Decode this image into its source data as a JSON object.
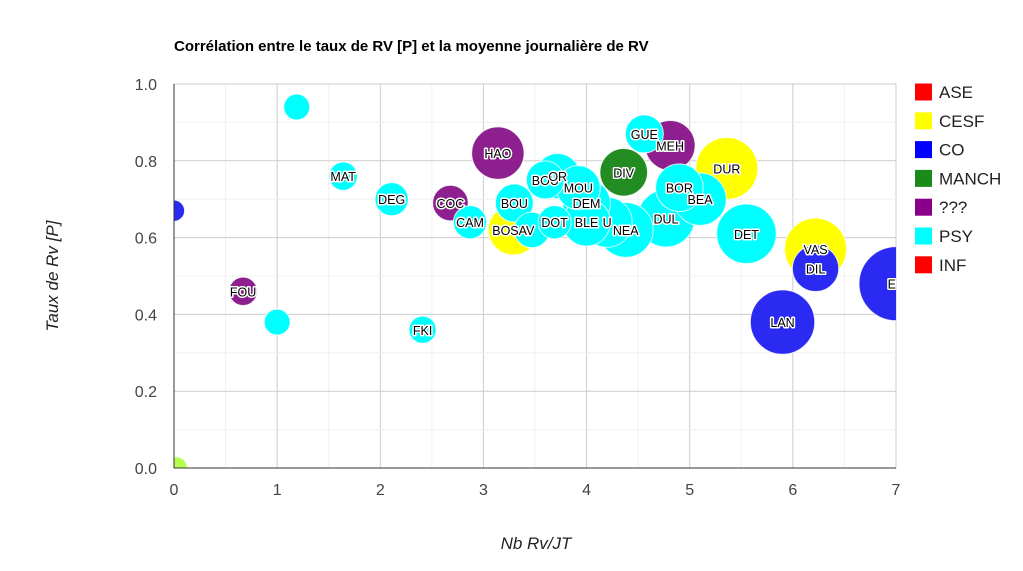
{
  "chart_data": {
    "type": "bubble",
    "title": "Corrélation entre le taux de RV [P] et la moyenne journalière de RV",
    "xlabel": "Nb Rv/JT",
    "ylabel": "Taux de Rv [P]",
    "xlim": [
      0,
      7
    ],
    "ylim": [
      0,
      1
    ],
    "x_ticks": [
      "0",
      "1",
      "2",
      "3",
      "4",
      "5",
      "6",
      "7"
    ],
    "y_ticks": [
      "0.0",
      "0.2",
      "0.4",
      "0.6",
      "0.8",
      "1.0"
    ],
    "grid": true,
    "legend_position": "right",
    "legend": [
      {
        "name": "ASE",
        "color": "#ff0000"
      },
      {
        "name": "CESF",
        "color": "#ffff00"
      },
      {
        "name": "CO",
        "color": "#0000ff"
      },
      {
        "name": "MANCH",
        "color": "#1a8a1a"
      },
      {
        "name": "???",
        "color": "#8b008b"
      },
      {
        "name": "PSY",
        "color": "#00ffff"
      },
      {
        "name": "INF",
        "color": "#ff0000"
      }
    ],
    "points": [
      {
        "label": "",
        "group": "PSY",
        "x": 1.19,
        "y": 0.94,
        "size": 1
      },
      {
        "label": "",
        "group": "CO",
        "x": 0.0,
        "y": 0.67,
        "size": 0.6
      },
      {
        "label": "",
        "group": "other",
        "x": 0.02,
        "y": 0.0,
        "size": 0.7
      },
      {
        "label": "",
        "group": "PSY",
        "x": 1.0,
        "y": 0.38,
        "size": 1
      },
      {
        "label": "MAT",
        "group": "PSY",
        "x": 1.64,
        "y": 0.76,
        "size": 1.2
      },
      {
        "label": "FOU",
        "group": "???",
        "x": 0.67,
        "y": 0.46,
        "size": 1.2
      },
      {
        "label": "DEG",
        "group": "PSY",
        "x": 2.11,
        "y": 0.7,
        "size": 1.6
      },
      {
        "label": "FKI",
        "group": "PSY",
        "x": 2.41,
        "y": 0.36,
        "size": 1.1
      },
      {
        "label": "COC",
        "group": "???",
        "x": 2.68,
        "y": 0.69,
        "size": 1.8
      },
      {
        "label": "CAM",
        "group": "PSY",
        "x": 2.87,
        "y": 0.64,
        "size": 1.6
      },
      {
        "label": "HAO",
        "group": "???",
        "x": 3.14,
        "y": 0.82,
        "size": 3.2
      },
      {
        "label": "BOU",
        "group": "PSY",
        "x": 3.3,
        "y": 0.69,
        "size": 2.0
      },
      {
        "label": "BOSAV",
        "group": "CESF",
        "x": 3.29,
        "y": 0.62,
        "size": 3.0
      },
      {
        "label": "",
        "group": "PSY",
        "x": 3.47,
        "y": 0.62,
        "size": 1.8
      },
      {
        "label": "BOU",
        "group": "PSY",
        "x": 3.6,
        "y": 0.75,
        "size": 2.0
      },
      {
        "label": "OR",
        "group": "PSY",
        "x": 3.72,
        "y": 0.76,
        "size": 2.6
      },
      {
        "label": "MOU",
        "group": "PSY",
        "x": 3.92,
        "y": 0.73,
        "size": 2.5
      },
      {
        "label": "DEM",
        "group": "PSY",
        "x": 4.0,
        "y": 0.69,
        "size": 2.8
      },
      {
        "label": "DOT",
        "group": "PSY",
        "x": 3.69,
        "y": 0.64,
        "size": 1.6
      },
      {
        "label": "BLE",
        "group": "PSY",
        "x": 4.0,
        "y": 0.64,
        "size": 2.8
      },
      {
        "label": "U",
        "group": "PSY",
        "x": 4.2,
        "y": 0.64,
        "size": 3.0
      },
      {
        "label": "NEA",
        "group": "PSY",
        "x": 4.38,
        "y": 0.62,
        "size": 3.4
      },
      {
        "label": "DIV",
        "group": "MANCH",
        "x": 4.36,
        "y": 0.77,
        "size": 2.8
      },
      {
        "label": "GUE",
        "group": "PSY",
        "x": 4.56,
        "y": 0.87,
        "size": 2.0
      },
      {
        "label": "MEH",
        "group": "???",
        "x": 4.81,
        "y": 0.84,
        "size": 3.0
      },
      {
        "label": "DUL",
        "group": "PSY",
        "x": 4.77,
        "y": 0.65,
        "size": 3.6
      },
      {
        "label": "BOR",
        "group": "PSY",
        "x": 4.9,
        "y": 0.73,
        "size": 2.8
      },
      {
        "label": "BEA",
        "group": "PSY",
        "x": 5.1,
        "y": 0.7,
        "size": 3.2
      },
      {
        "label": "DUR",
        "group": "CESF",
        "x": 5.36,
        "y": 0.78,
        "size": 4.0
      },
      {
        "label": "DET",
        "group": "PSY",
        "x": 5.55,
        "y": 0.61,
        "size": 3.8
      },
      {
        "label": "LAN",
        "group": "CO",
        "x": 5.9,
        "y": 0.38,
        "size": 4.2
      },
      {
        "label": "VAS",
        "group": "CESF",
        "x": 6.22,
        "y": 0.57,
        "size": 4.0
      },
      {
        "label": "DIL",
        "group": "CO",
        "x": 6.22,
        "y": 0.52,
        "size": 2.7
      },
      {
        "label": "EV",
        "group": "CO",
        "x": 7.0,
        "y": 0.48,
        "size": 5.0
      }
    ]
  }
}
